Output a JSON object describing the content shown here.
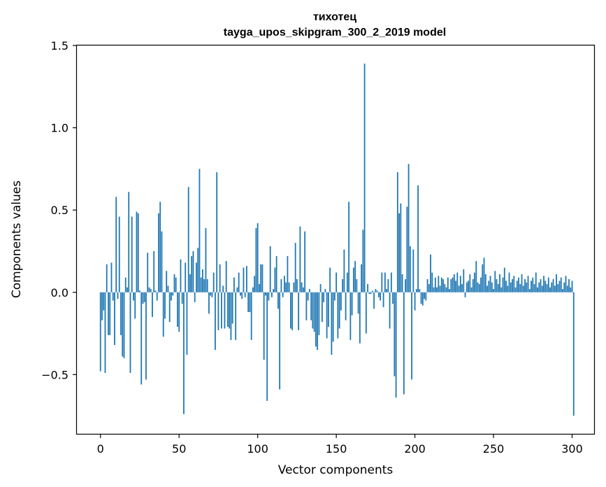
{
  "chart_data": {
    "type": "bar",
    "title_lines": [
      "тихотец",
      "tayga_upos_skipgram_300_2_2019 model"
    ],
    "xlabel": "Vector components",
    "ylabel": "Components values",
    "xlim": [
      -15,
      314
    ],
    "ylim": [
      -0.86,
      1.5
    ],
    "xticks": [
      0,
      50,
      100,
      150,
      200,
      250,
      300
    ],
    "yticks": [
      -0.5,
      0.0,
      0.5,
      1.0,
      1.5
    ],
    "ytick_labels": [
      "−0.5",
      "0.0",
      "0.5",
      "1.0",
      "1.5"
    ],
    "bar_color": "#1f77b4",
    "grid": false,
    "series": [
      {
        "name": "тихотец",
        "values": [
          -0.48,
          -0.17,
          -0.11,
          -0.49,
          0.17,
          -0.26,
          -0.26,
          0.18,
          -0.05,
          -0.32,
          0.58,
          -0.04,
          0.46,
          -0.26,
          -0.39,
          -0.4,
          0.09,
          0.03,
          0.61,
          -0.49,
          0.46,
          -0.05,
          -0.16,
          0.49,
          0.48,
          0.01,
          -0.56,
          -0.07,
          -0.06,
          -0.53,
          0.24,
          0.03,
          0.02,
          -0.15,
          0.25,
          0.01,
          -0.05,
          0.48,
          0.55,
          0.37,
          -0.27,
          -0.16,
          0.13,
          0.04,
          -0.18,
          -0.05,
          -0.02,
          0.11,
          0.09,
          -0.21,
          -0.24,
          0.2,
          -0.07,
          -0.74,
          0.18,
          -0.38,
          0.64,
          0.11,
          0.22,
          0.25,
          -0.06,
          0.18,
          0.27,
          0.75,
          0.09,
          0.14,
          0.08,
          0.39,
          0.08,
          -0.13,
          -0.02,
          -0.03,
          0.12,
          -0.35,
          0.73,
          -0.23,
          0.17,
          -0.22,
          0.04,
          -0.22,
          0.19,
          -0.21,
          -0.22,
          -0.29,
          -0.19,
          0.09,
          -0.29,
          0.03,
          0.12,
          -0.02,
          -0.04,
          0.15,
          -0.03,
          0.16,
          -0.12,
          -0.12,
          -0.29,
          0.03,
          0.1,
          0.39,
          0.42,
          0.05,
          0.17,
          0.17,
          -0.41,
          -0.02,
          -0.66,
          -0.05,
          0.28,
          -0.03,
          0.02,
          0.15,
          0.22,
          -0.1,
          -0.59,
          0.08,
          -0.03,
          0.1,
          0.06,
          0.22,
          0.06,
          -0.22,
          -0.23,
          0.06,
          0.3,
          0.08,
          -0.23,
          0.4,
          0.06,
          0.03,
          0.37,
          -0.17,
          -0.05,
          0.02,
          -0.17,
          -0.22,
          -0.24,
          -0.33,
          -0.35,
          -0.26,
          0.05,
          -0.18,
          -0.06,
          0.02,
          -0.28,
          -0.21,
          0.15,
          -0.38,
          -0.3,
          -0.05,
          0.12,
          -0.28,
          -0.22,
          -0.11,
          0.08,
          0.26,
          -0.17,
          0.12,
          0.55,
          -0.29,
          -0.14,
          0.15,
          0.19,
          0.08,
          -0.13,
          -0.31,
          0.17,
          0.38,
          1.39,
          -0.25,
          0.05,
          -0.01,
          -0.01,
          0.01,
          -0.1,
          0.02,
          0.01,
          -0.03,
          -0.05,
          0.12,
          -0.09,
          0.12,
          0.02,
          0.08,
          -0.22,
          0.12,
          -0.07,
          -0.51,
          -0.64,
          0.73,
          0.48,
          0.54,
          0.11,
          -0.62,
          0.08,
          0.52,
          0.78,
          0.28,
          -0.53,
          0.26,
          -0.11,
          0.02,
          0.65,
          0.02,
          -0.07,
          -0.08,
          -0.04,
          -0.05,
          0.08,
          0.05,
          0.23,
          0.12,
          0.03,
          0.09,
          0.03,
          0.1,
          0.04,
          0.09,
          0.08,
          0.05,
          0.03,
          0.09,
          0.02,
          0.08,
          0.09,
          0.11,
          0.07,
          0.12,
          0.04,
          0.1,
          0.05,
          0.14,
          -0.03,
          0.06,
          0.07,
          0.11,
          0.03,
          0.08,
          0.12,
          0.19,
          0.06,
          0.05,
          0.09,
          0.17,
          0.21,
          0.11,
          0.04,
          0.07,
          0.1,
          0.06,
          0.02,
          0.13,
          0.08,
          0.05,
          0.11,
          0.03,
          0.09,
          0.15,
          0.07,
          0.04,
          0.12,
          0.06,
          0.08,
          0.1,
          0.03,
          0.07,
          0.09,
          0.05,
          0.11,
          0.04,
          0.08,
          0.06,
          0.1,
          0.02,
          0.07,
          0.09,
          0.05,
          0.12,
          0.03,
          0.06,
          0.08,
          0.04,
          0.1,
          0.07,
          0.05,
          0.09,
          0.03,
          0.06,
          0.08,
          0.04,
          0.11,
          0.05,
          0.07,
          0.09,
          0.02,
          0.06,
          0.1,
          0.04,
          0.08,
          0.03,
          0.07,
          -0.75
        ]
      }
    ]
  }
}
